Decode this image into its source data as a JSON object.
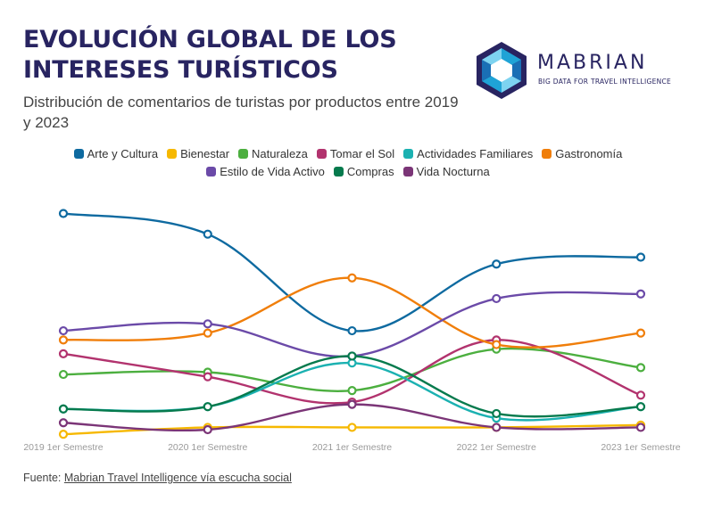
{
  "header": {
    "title": "EVOLUCIÓN GLOBAL DE LOS INTERESES TURÍSTICOS",
    "subtitle": "Distribución de comentarios de turistas por productos entre 2019 y 2023"
  },
  "logo": {
    "name": "MABRIAN",
    "tagline": "BIG DATA FOR TRAVEL INTELLIGENCE",
    "colors": [
      "#282461",
      "#1fa3d6",
      "#1a6fb5",
      "#7dd3f0"
    ]
  },
  "footer": {
    "source_label": "Fuente:",
    "source_link": "Mabrian Travel Intelligence vía escucha social"
  },
  "chart_data": {
    "type": "line",
    "title": "EVOLUCIÓN GLOBAL DE LOS INTERESES TURÍSTICOS",
    "subtitle": "Distribución de comentarios de turistas por productos entre 2019 y 2023",
    "categories": [
      "2019 1er Semestre",
      "2020 1er Semestre",
      "2021 1er Semestre",
      "2022 1er Semestre",
      "2023 1er Semestre"
    ],
    "y_axis_visible": false,
    "ylim": [
      0,
      100
    ],
    "grid": false,
    "legend_position": "top",
    "series": [
      {
        "name": "Arte y Cultura",
        "color": "#0e6aa0",
        "values": [
          94,
          85,
          43,
          72,
          75
        ]
      },
      {
        "name": "Bienestar",
        "color": "#f6b800",
        "values": [
          -2,
          1,
          1,
          1,
          2
        ]
      },
      {
        "name": "Naturaleza",
        "color": "#4caf3f",
        "values": [
          24,
          25,
          17,
          35,
          27
        ]
      },
      {
        "name": "Tomar el Sol",
        "color": "#b2336e",
        "values": [
          33,
          23,
          12,
          39,
          15
        ]
      },
      {
        "name": "Actividades Familiares",
        "color": "#1bb1b1",
        "values": [
          9,
          10,
          29,
          5,
          10
        ]
      },
      {
        "name": "Gastronomía",
        "color": "#f07e0a",
        "values": [
          39,
          42,
          66,
          37,
          42
        ]
      },
      {
        "name": "Estilo de Vida Activo",
        "color": "#6b4aa8",
        "values": [
          43,
          46,
          32,
          57,
          59
        ]
      },
      {
        "name": "Compras",
        "color": "#067a4d",
        "values": [
          9,
          10,
          32,
          7,
          10
        ]
      },
      {
        "name": "Vida Nocturna",
        "color": "#7b3577",
        "values": [
          3,
          0,
          11,
          1,
          1
        ]
      }
    ]
  }
}
